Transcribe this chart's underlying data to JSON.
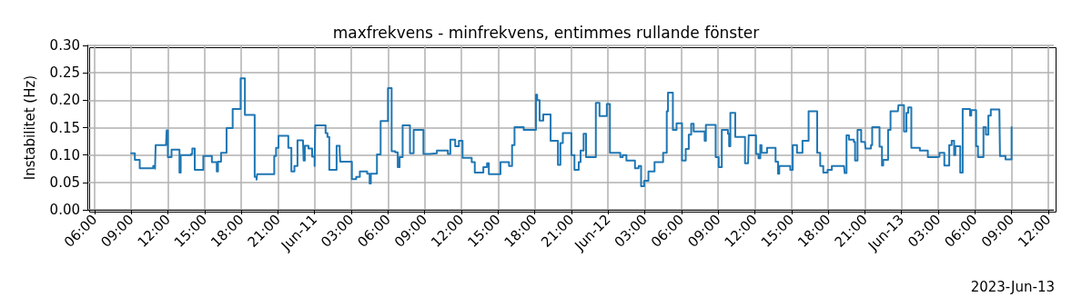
{
  "chart_data": {
    "type": "step",
    "title": "maxfrekvens - minfrekvens, entimmes rullande fönster",
    "ylabel": "Instabilitet (Hz)",
    "annotations": [
      "2023-Jun-13"
    ],
    "xlim": [
      "2023-06-10T05:25",
      "2023-06-13T12:27"
    ],
    "xticks": [
      {
        "value": "2023-06-10T06:00",
        "label": "06:00"
      },
      {
        "value": "2023-06-10T09:00",
        "label": "09:00"
      },
      {
        "value": "2023-06-10T12:00",
        "label": "12:00"
      },
      {
        "value": "2023-06-10T15:00",
        "label": "15:00"
      },
      {
        "value": "2023-06-10T18:00",
        "label": "18:00"
      },
      {
        "value": "2023-06-10T21:00",
        "label": "21:00"
      },
      {
        "value": "2023-06-11T00:00",
        "label": "Jun-11"
      },
      {
        "value": "2023-06-11T03:00",
        "label": "03:00"
      },
      {
        "value": "2023-06-11T06:00",
        "label": "06:00"
      },
      {
        "value": "2023-06-11T09:00",
        "label": "09:00"
      },
      {
        "value": "2023-06-11T12:00",
        "label": "12:00"
      },
      {
        "value": "2023-06-11T15:00",
        "label": "15:00"
      },
      {
        "value": "2023-06-11T18:00",
        "label": "18:00"
      },
      {
        "value": "2023-06-11T21:00",
        "label": "21:00"
      },
      {
        "value": "2023-06-12T00:00",
        "label": "Jun-12"
      },
      {
        "value": "2023-06-12T03:00",
        "label": "03:00"
      },
      {
        "value": "2023-06-12T06:00",
        "label": "06:00"
      },
      {
        "value": "2023-06-12T09:00",
        "label": "09:00"
      },
      {
        "value": "2023-06-12T12:00",
        "label": "12:00"
      },
      {
        "value": "2023-06-12T15:00",
        "label": "15:00"
      },
      {
        "value": "2023-06-12T18:00",
        "label": "18:00"
      },
      {
        "value": "2023-06-12T21:00",
        "label": "21:00"
      },
      {
        "value": "2023-06-13T00:00",
        "label": "Jun-13"
      },
      {
        "value": "2023-06-13T03:00",
        "label": "03:00"
      },
      {
        "value": "2023-06-13T06:00",
        "label": "06:00"
      },
      {
        "value": "2023-06-13T09:00",
        "label": "09:00"
      },
      {
        "value": "2023-06-13T12:00",
        "label": "12:00"
      }
    ],
    "ylim": [
      0,
      0.3
    ],
    "yticks": [
      {
        "value": 0,
        "label": "0.00"
      },
      {
        "value": 0.05,
        "label": "0.05"
      },
      {
        "value": 0.1,
        "label": "0.10"
      },
      {
        "value": 0.15,
        "label": "0.15"
      },
      {
        "value": 0.2,
        "label": "0.20"
      },
      {
        "value": 0.25,
        "label": "0.25"
      },
      {
        "value": 0.3,
        "label": "0.30"
      }
    ],
    "grid": true,
    "line_style": "solid",
    "marker": "none",
    "series": [
      {
        "color": "#1f77b4",
        "x": [
          "2023-06-10T09:00",
          "2023-06-10T09:18",
          "2023-06-10T09:42",
          "2023-06-10T10:48",
          "2023-06-10T10:57",
          "2023-06-10T11:00",
          "2023-06-10T11:51",
          "2023-06-10T11:54",
          "2023-06-10T12:00",
          "2023-06-10T12:18",
          "2023-06-10T12:57",
          "2023-06-10T13:03",
          "2023-06-10T13:54",
          "2023-06-10T14:00",
          "2023-06-10T14:12",
          "2023-06-10T14:54",
          "2023-06-10T15:36",
          "2023-06-10T16:00",
          "2023-06-10T16:06",
          "2023-06-10T16:21",
          "2023-06-10T16:48",
          "2023-06-10T17:18",
          "2023-06-10T17:57",
          "2023-06-10T18:18",
          "2023-06-10T18:54",
          "2023-06-10T19:06",
          "2023-06-10T19:15",
          "2023-06-10T19:18",
          "2023-06-10T20:36",
          "2023-06-10T20:42",
          "2023-06-10T20:51",
          "2023-06-10T21:03",
          "2023-06-10T21:42",
          "2023-06-10T21:51",
          "2023-06-10T22:06",
          "2023-06-10T22:21",
          "2023-06-10T22:36",
          "2023-06-10T23:03",
          "2023-06-10T23:06",
          "2023-06-10T23:12",
          "2023-06-10T23:30",
          "2023-06-10T23:48",
          "2023-06-11T00:00",
          "2023-06-11T00:03",
          "2023-06-11T00:36",
          "2023-06-11T00:54",
          "2023-06-11T01:03",
          "2023-06-11T01:12",
          "2023-06-11T01:48",
          "2023-06-11T02:03",
          "2023-06-11T02:06",
          "2023-06-11T02:54",
          "2023-06-11T03:03",
          "2023-06-11T03:24",
          "2023-06-11T03:42",
          "2023-06-11T04:12",
          "2023-06-11T04:18",
          "2023-06-11T04:30",
          "2023-06-11T04:36",
          "2023-06-11T05:06",
          "2023-06-11T05:24",
          "2023-06-11T05:45",
          "2023-06-11T06:00",
          "2023-06-11T06:18",
          "2023-06-11T06:36",
          "2023-06-11T06:48",
          "2023-06-11T06:57",
          "2023-06-11T07:12",
          "2023-06-11T07:39",
          "2023-06-11T07:48",
          "2023-06-11T08:06",
          "2023-06-11T08:45",
          "2023-06-11T08:54",
          "2023-06-11T09:24",
          "2023-06-11T10:00",
          "2023-06-11T10:54",
          "2023-06-11T11:06",
          "2023-06-11T11:18",
          "2023-06-11T11:30",
          "2023-06-11T11:48",
          "2023-06-11T12:06",
          "2023-06-11T12:51",
          "2023-06-11T13:06",
          "2023-06-11T13:36",
          "2023-06-11T13:48",
          "2023-06-11T14:06",
          "2023-06-11T14:15",
          "2023-06-11T15:00",
          "2023-06-11T15:12",
          "2023-06-11T15:54",
          "2023-06-11T16:09",
          "2023-06-11T16:21",
          "2023-06-11T16:54",
          "2023-06-11T17:06",
          "2023-06-11T17:48",
          "2023-06-11T18:06",
          "2023-06-11T18:12",
          "2023-06-11T18:24",
          "2023-06-11T18:42",
          "2023-06-11T19:00",
          "2023-06-11T19:18",
          "2023-06-11T19:48",
          "2023-06-11T19:54",
          "2023-06-11T20:06",
          "2023-06-11T20:18",
          "2023-06-11T20:48",
          "2023-06-11T21:00",
          "2023-06-11T21:15",
          "2023-06-11T21:30",
          "2023-06-11T21:36",
          "2023-06-11T21:45",
          "2023-06-11T22:00",
          "2023-06-11T22:12",
          "2023-06-11T22:54",
          "2023-06-11T23:00",
          "2023-06-11T23:18",
          "2023-06-11T23:42",
          "2023-06-11T23:54",
          "2023-06-12T00:09",
          "2023-06-12T00:48",
          "2023-06-12T01:00",
          "2023-06-12T01:12",
          "2023-06-12T01:30",
          "2023-06-12T02:00",
          "2023-06-12T02:12",
          "2023-06-12T02:30",
          "2023-06-12T02:42",
          "2023-06-12T02:57",
          "2023-06-12T03:18",
          "2023-06-12T03:48",
          "2023-06-12T04:18",
          "2023-06-12T04:30",
          "2023-06-12T04:48",
          "2023-06-12T04:54",
          "2023-06-12T05:12",
          "2023-06-12T05:18",
          "2023-06-12T05:36",
          "2023-06-12T05:54",
          "2023-06-12T06:03",
          "2023-06-12T06:21",
          "2023-06-12T06:36",
          "2023-06-12T06:48",
          "2023-06-12T07:00",
          "2023-06-12T07:48",
          "2023-06-12T07:54",
          "2023-06-12T08:00",
          "2023-06-12T08:36",
          "2023-06-12T08:48",
          "2023-06-12T09:03",
          "2023-06-12T09:18",
          "2023-06-12T09:48",
          "2023-06-12T09:54",
          "2023-06-12T10:00",
          "2023-06-12T10:24",
          "2023-06-12T11:00",
          "2023-06-12T11:12",
          "2023-06-12T11:27",
          "2023-06-12T11:30",
          "2023-06-12T11:54",
          "2023-06-12T12:06",
          "2023-06-12T12:18",
          "2023-06-12T12:27",
          "2023-06-12T12:33",
          "2023-06-12T13:00",
          "2023-06-12T13:33",
          "2023-06-12T13:42",
          "2023-06-12T13:54",
          "2023-06-12T14:00",
          "2023-06-12T14:45",
          "2023-06-12T14:54",
          "2023-06-12T15:06",
          "2023-06-12T15:27",
          "2023-06-12T15:54",
          "2023-06-12T16:15",
          "2023-06-12T16:24",
          "2023-06-12T16:51",
          "2023-06-12T17:06",
          "2023-06-12T17:21",
          "2023-06-12T17:36",
          "2023-06-12T17:57",
          "2023-06-12T18:18",
          "2023-06-12T19:18",
          "2023-06-12T19:21",
          "2023-06-12T19:30",
          "2023-06-12T19:42",
          "2023-06-12T20:06",
          "2023-06-12T20:12",
          "2023-06-12T20:24",
          "2023-06-12T20:42",
          "2023-06-12T21:00",
          "2023-06-12T21:03",
          "2023-06-12T21:30",
          "2023-06-12T21:36",
          "2023-06-12T22:03",
          "2023-06-12T22:12",
          "2023-06-12T22:24",
          "2023-06-12T22:30",
          "2023-06-12T22:48",
          "2023-06-12T22:54",
          "2023-06-12T23:06",
          "2023-06-12T23:42",
          "2023-06-12T23:45",
          "2023-06-13T00:06",
          "2023-06-13T00:12",
          "2023-06-13T00:24",
          "2023-06-13T00:33",
          "2023-06-13T00:42",
          "2023-06-13T00:48",
          "2023-06-13T01:24",
          "2023-06-13T01:30",
          "2023-06-13T02:00",
          "2023-06-13T02:09",
          "2023-06-13T02:54",
          "2023-06-13T03:06",
          "2023-06-13T03:18",
          "2023-06-13T03:30",
          "2023-06-13T03:48",
          "2023-06-13T03:54",
          "2023-06-13T04:06",
          "2023-06-13T04:18",
          "2023-06-13T04:24",
          "2023-06-13T04:42",
          "2023-06-13T04:48",
          "2023-06-13T05:00",
          "2023-06-13T05:30",
          "2023-06-13T05:36",
          "2023-06-13T05:42",
          "2023-06-13T06:00",
          "2023-06-13T06:06",
          "2023-06-13T06:15",
          "2023-06-13T06:36",
          "2023-06-13T06:42",
          "2023-06-13T06:54",
          "2023-06-13T07:06",
          "2023-06-13T07:18",
          "2023-06-13T08:00",
          "2023-06-13T08:03",
          "2023-06-13T08:30",
          "2023-06-13T08:54",
          "2023-06-13T09:00"
        ],
        "values": [
          0.103,
          0.091,
          0.076,
          0.08,
          0.075,
          0.118,
          0.118,
          0.145,
          0.096,
          0.11,
          0.068,
          0.1,
          0.102,
          0.112,
          0.073,
          0.098,
          0.087,
          0.07,
          0.088,
          0.104,
          0.149,
          0.184,
          0.24,
          0.173,
          0.173,
          0.06,
          0.055,
          0.065,
          0.065,
          0.098,
          0.113,
          0.135,
          0.135,
          0.113,
          0.07,
          0.08,
          0.127,
          0.127,
          0.09,
          0.117,
          0.112,
          0.097,
          0.08,
          0.154,
          0.154,
          0.14,
          0.133,
          0.073,
          0.117,
          0.108,
          0.088,
          0.088,
          0.056,
          0.06,
          0.07,
          0.07,
          0.066,
          0.048,
          0.066,
          0.101,
          0.162,
          0.162,
          0.222,
          0.107,
          0.105,
          0.078,
          0.096,
          0.154,
          0.154,
          0.103,
          0.146,
          0.146,
          0.102,
          0.103,
          0.108,
          0.102,
          0.128,
          0.128,
          0.116,
          0.126,
          0.095,
          0.087,
          0.068,
          0.068,
          0.078,
          0.085,
          0.065,
          0.065,
          0.087,
          0.08,
          0.118,
          0.151,
          0.151,
          0.146,
          0.146,
          0.21,
          0.2,
          0.163,
          0.174,
          0.174,
          0.126,
          0.126,
          0.082,
          0.122,
          0.14,
          0.14,
          0.1,
          0.073,
          0.073,
          0.087,
          0.108,
          0.139,
          0.096,
          0.096,
          0.195,
          0.171,
          0.171,
          0.193,
          0.104,
          0.104,
          0.096,
          0.1,
          0.09,
          0.09,
          0.076,
          0.08,
          0.043,
          0.053,
          0.07,
          0.087,
          0.087,
          0.104,
          0.18,
          0.214,
          0.214,
          0.146,
          0.158,
          0.158,
          0.09,
          0.111,
          0.137,
          0.157,
          0.143,
          0.143,
          0.126,
          0.155,
          0.155,
          0.096,
          0.078,
          0.146,
          0.139,
          0.116,
          0.177,
          0.133,
          0.133,
          0.085,
          0.085,
          0.136,
          0.136,
          0.102,
          0.094,
          0.118,
          0.104,
          0.113,
          0.113,
          0.088,
          0.066,
          0.08,
          0.08,
          0.073,
          0.118,
          0.104,
          0.126,
          0.126,
          0.18,
          0.18,
          0.104,
          0.08,
          0.068,
          0.073,
          0.08,
          0.08,
          0.067,
          0.136,
          0.128,
          0.124,
          0.09,
          0.146,
          0.124,
          0.124,
          0.112,
          0.118,
          0.151,
          0.151,
          0.115,
          0.081,
          0.091,
          0.091,
          0.146,
          0.18,
          0.18,
          0.191,
          0.191,
          0.143,
          0.177,
          0.187,
          0.187,
          0.113,
          0.113,
          0.108,
          0.108,
          0.096,
          0.097,
          0.104,
          0.104,
          0.081,
          0.081,
          0.118,
          0.126,
          0.1,
          0.116,
          0.116,
          0.068,
          0.184,
          0.184,
          0.172,
          0.182,
          0.182,
          0.116,
          0.096,
          0.096,
          0.151,
          0.137,
          0.172,
          0.183,
          0.183,
          0.098,
          0.092,
          0.092,
          0.151
        ]
      }
    ]
  }
}
